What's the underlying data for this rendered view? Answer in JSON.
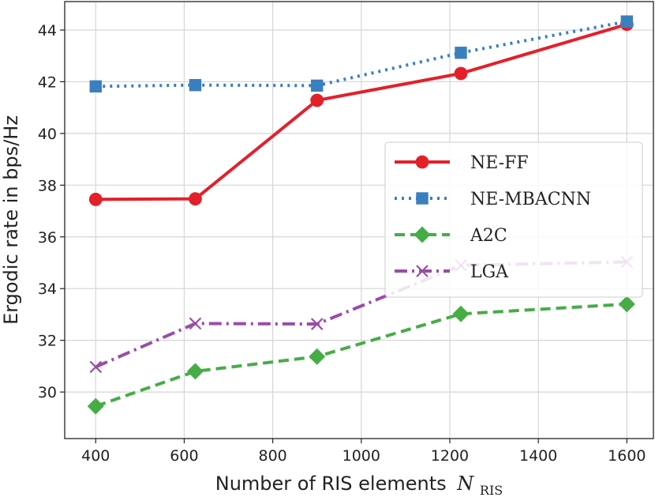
{
  "chart_data": {
    "type": "line",
    "title": "",
    "xlabel": "Number of RIS elements",
    "xlabel_symbol": "N",
    "xlabel_subscript": "RIS",
    "ylabel": "Ergodic rate in bps/Hz",
    "x": [
      400,
      625,
      900,
      1225,
      1600
    ],
    "xlim": [
      330,
      1660
    ],
    "ylim": [
      28.2,
      45.1
    ],
    "xticks": [
      400,
      600,
      800,
      1000,
      1200,
      1400,
      1600
    ],
    "yticks": [
      30,
      32,
      34,
      36,
      38,
      40,
      42,
      44
    ],
    "grid": true,
    "legend_position": "center-right",
    "series": [
      {
        "name": "NE-FF",
        "values": [
          37.45,
          37.47,
          41.28,
          42.32,
          44.22
        ],
        "color": "#e3202a",
        "marker": "circle",
        "linestyle": "solid"
      },
      {
        "name": "NE-MBACNN",
        "values": [
          41.82,
          41.87,
          41.85,
          43.12,
          44.33
        ],
        "color": "#3a7fbf",
        "marker": "square",
        "linestyle": "dotted"
      },
      {
        "name": "A2C",
        "values": [
          29.45,
          30.8,
          31.37,
          33.02,
          33.4
        ],
        "color": "#46ad46",
        "marker": "diamond",
        "linestyle": "dashed"
      },
      {
        "name": "LGA",
        "values": [
          30.97,
          32.65,
          32.63,
          34.9,
          35.03
        ],
        "color": "#9a4ca8",
        "marker": "x",
        "linestyle": "dashdot"
      }
    ]
  }
}
